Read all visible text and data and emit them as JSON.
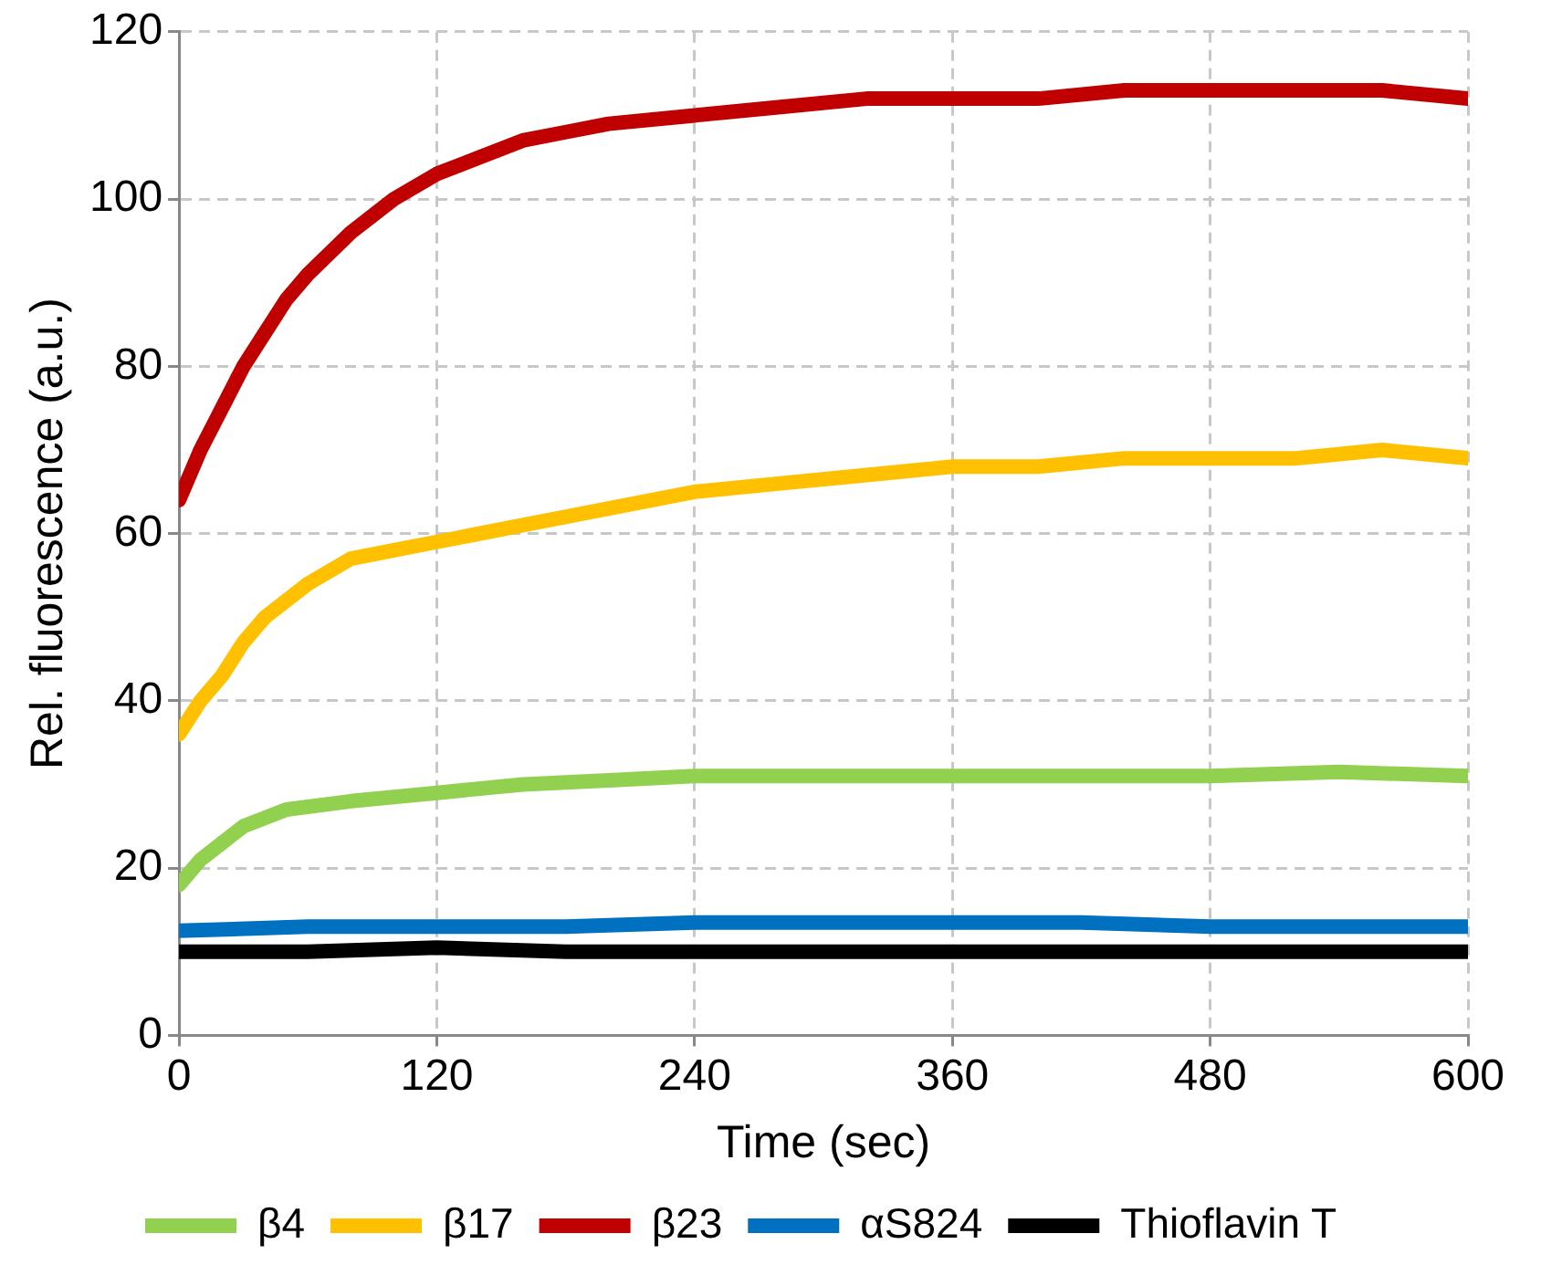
{
  "chart_data": {
    "type": "line",
    "xlabel": "Time (sec)",
    "ylabel": "Rel. fluorescence (a.u.)",
    "xlim": [
      0,
      600
    ],
    "xticks": [
      0,
      120,
      240,
      360,
      480,
      600
    ],
    "ylim": [
      0,
      120
    ],
    "yticks": [
      0,
      20,
      40,
      60,
      80,
      100,
      120
    ],
    "grid": true,
    "legend": "bottom",
    "marker": "none",
    "line_style": "solid",
    "series": [
      {
        "name": "β4",
        "color": "#92d050",
        "x": [
          0,
          10,
          20,
          30,
          50,
          80,
          120,
          160,
          200,
          240,
          300,
          360,
          420,
          480,
          540,
          600
        ],
        "values": [
          18,
          21,
          23,
          25,
          27,
          28,
          29,
          30,
          30.5,
          31,
          31,
          31,
          31,
          31,
          31.5,
          31
        ]
      },
      {
        "name": "β17",
        "color": "#ffc000",
        "x": [
          0,
          10,
          20,
          30,
          40,
          60,
          80,
          100,
          120,
          160,
          200,
          240,
          280,
          320,
          360,
          400,
          440,
          480,
          520,
          560,
          600
        ],
        "values": [
          36,
          40,
          43,
          47,
          50,
          54,
          57,
          58,
          59,
          61,
          63,
          65,
          66,
          67,
          68,
          68,
          69,
          69,
          69,
          70,
          69
        ]
      },
      {
        "name": "β23",
        "color": "#c00000",
        "x": [
          0,
          10,
          20,
          30,
          40,
          50,
          60,
          80,
          100,
          120,
          140,
          160,
          180,
          200,
          240,
          280,
          320,
          360,
          400,
          440,
          480,
          520,
          560,
          600
        ],
        "values": [
          64,
          70,
          75,
          80,
          84,
          88,
          91,
          96,
          100,
          103,
          105,
          107,
          108,
          109,
          110,
          111,
          112,
          112,
          112,
          113,
          113,
          113,
          113,
          112
        ]
      },
      {
        "name": "αS824",
        "color": "#0070c0",
        "x": [
          0,
          60,
          120,
          180,
          240,
          300,
          360,
          420,
          480,
          540,
          600
        ],
        "values": [
          12.5,
          13,
          13,
          13,
          13.5,
          13.5,
          13.5,
          13.5,
          13,
          13,
          13
        ]
      },
      {
        "name": "Thioflavin T",
        "color": "#000000",
        "x": [
          0,
          60,
          120,
          180,
          240,
          300,
          360,
          420,
          480,
          540,
          600
        ],
        "values": [
          10,
          10,
          10.5,
          10,
          10,
          10,
          10,
          10,
          10,
          10,
          10
        ]
      }
    ]
  }
}
